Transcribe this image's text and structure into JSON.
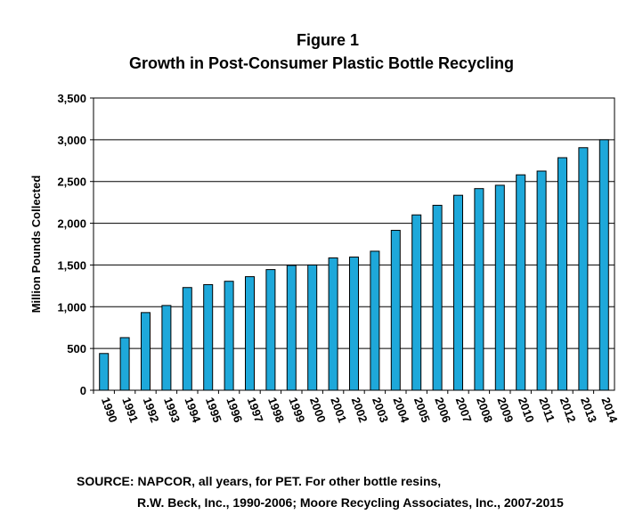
{
  "title_line1": "Figure 1",
  "title_line2": "Growth in Post-Consumer Plastic Bottle Recycling",
  "source_line1": "SOURCE: NAPCOR, all years, for PET.  For other bottle resins,",
  "source_line2": "R.W. Beck, Inc., 1990-2006; Moore Recycling Associates, Inc.,  2007-2015",
  "chart_data": {
    "type": "bar",
    "title": "Growth in Post-Consumer Plastic Bottle Recycling",
    "xlabel": "",
    "ylabel": "Million Pounds Collected",
    "categories": [
      "1990",
      "1991",
      "1992",
      "1993",
      "1994",
      "1995",
      "1996",
      "1997",
      "1998",
      "1999",
      "2000",
      "2001",
      "2002",
      "2003",
      "2004",
      "2005",
      "2006",
      "2007",
      "2008",
      "2009",
      "2010",
      "2011",
      "2012",
      "2013",
      "2014"
    ],
    "values": [
      440,
      630,
      930,
      1015,
      1230,
      1265,
      1305,
      1360,
      1445,
      1495,
      1500,
      1585,
      1595,
      1665,
      1915,
      2100,
      2215,
      2335,
      2415,
      2455,
      2580,
      2625,
      2785,
      2905,
      3000
    ],
    "ylim": [
      0,
      3500
    ],
    "yticks": [
      0,
      500,
      1000,
      1500,
      2000,
      2500,
      3000,
      3500
    ],
    "ytick_labels": [
      "0",
      "500",
      "1,000",
      "1,500",
      "2,000",
      "2,500",
      "3,000",
      "3,500"
    ],
    "grid": "horizontal",
    "legend": "none",
    "bar_color": "#1EA8DA"
  }
}
